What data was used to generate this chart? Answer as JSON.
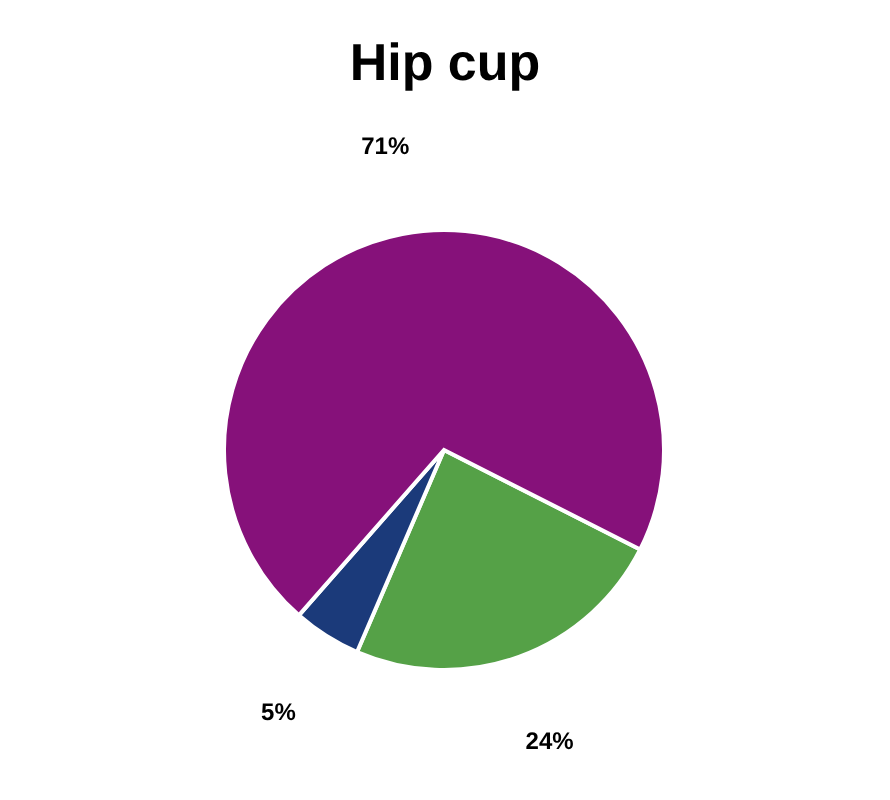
{
  "chart_data": {
    "type": "pie",
    "title": "Hip cup",
    "categories": [
      null,
      null,
      null
    ],
    "values": [
      24,
      5,
      71
    ],
    "colors": [
      "#55a147",
      "#1b3a7a",
      "#86117a"
    ],
    "value_labels": [
      "24%",
      "5%",
      "71%"
    ],
    "legend": false
  }
}
